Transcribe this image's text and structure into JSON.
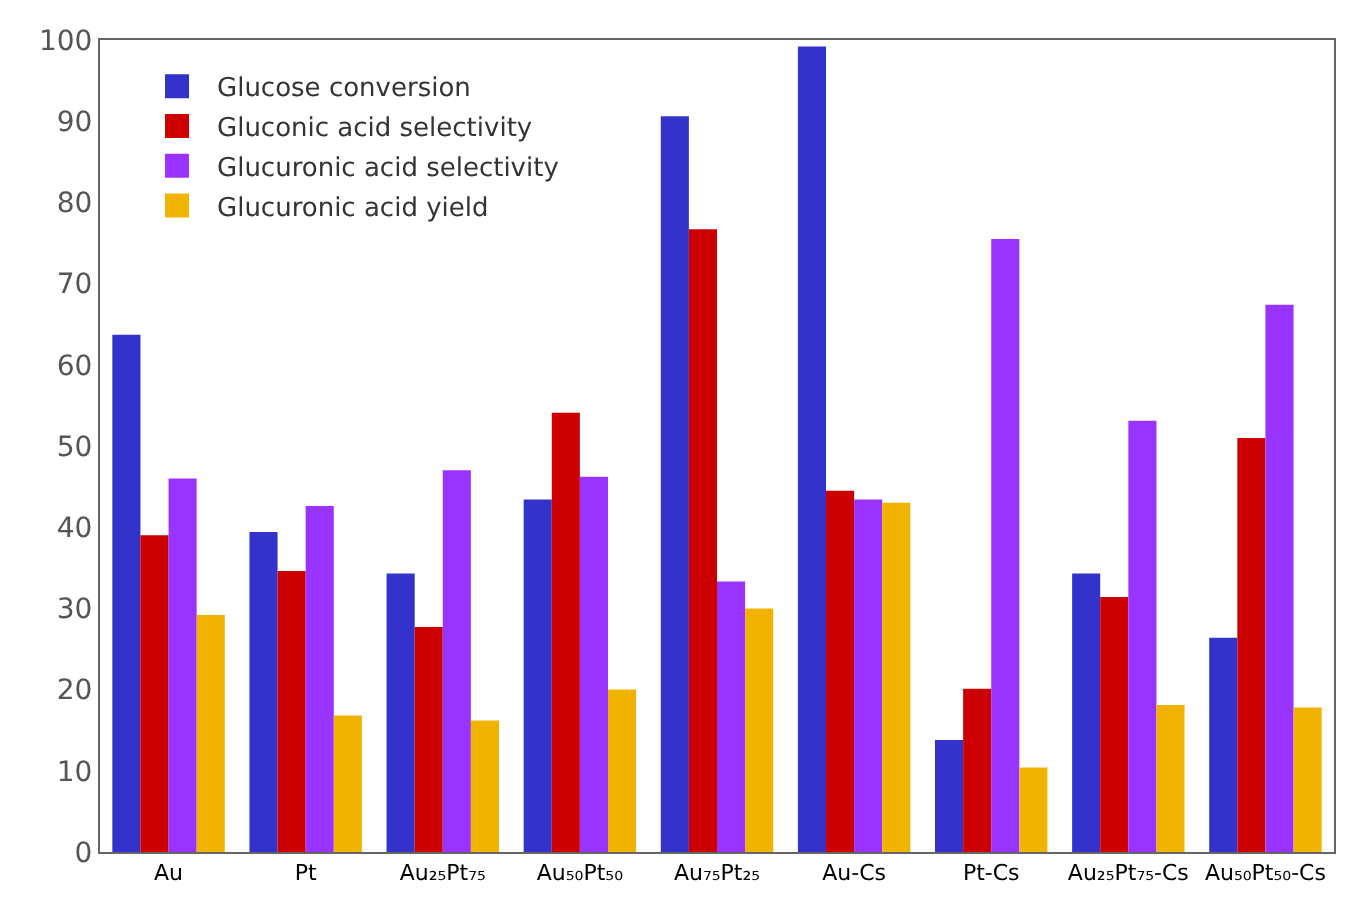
{
  "chart_data": {
    "type": "bar",
    "categories": [
      "Au",
      "Pt",
      "Au₂₅Pt₇₅",
      "Au₅₀Pt₅₀",
      "Au₇₅Pt₂₅",
      "Au-Cs",
      "Pt-Cs",
      "Au₂₅Pt₇₅-Cs",
      "Au₅₀Pt₅₀-Cs"
    ],
    "series": [
      {
        "name": "Glucose conversion",
        "color": "#3333cc",
        "values": [
          63.7,
          39.4,
          34.3,
          43.4,
          90.6,
          99.2,
          13.8,
          34.3,
          26.4
        ]
      },
      {
        "name": "Gluconic acid selectivity",
        "color": "#cc0000",
        "values": [
          39,
          34.6,
          27.7,
          54.1,
          76.7,
          44.5,
          20.1,
          31.4,
          51
        ]
      },
      {
        "name": "Glucuronic acid selectivity",
        "color": "#9933ff",
        "values": [
          46,
          42.6,
          47,
          46.2,
          33.3,
          43.4,
          75.5,
          53.1,
          67.4
        ]
      },
      {
        "name": "Glucuronic acid yield",
        "color": "#f0b400",
        "values": [
          29.2,
          16.8,
          16.2,
          20,
          30,
          43,
          10.4,
          18.1,
          17.8
        ]
      }
    ],
    "ylim": [
      0,
      100
    ],
    "yticks": [
      0,
      10,
      20,
      30,
      40,
      50,
      60,
      70,
      80,
      90,
      100
    ],
    "grid": false,
    "legend": "top left"
  }
}
